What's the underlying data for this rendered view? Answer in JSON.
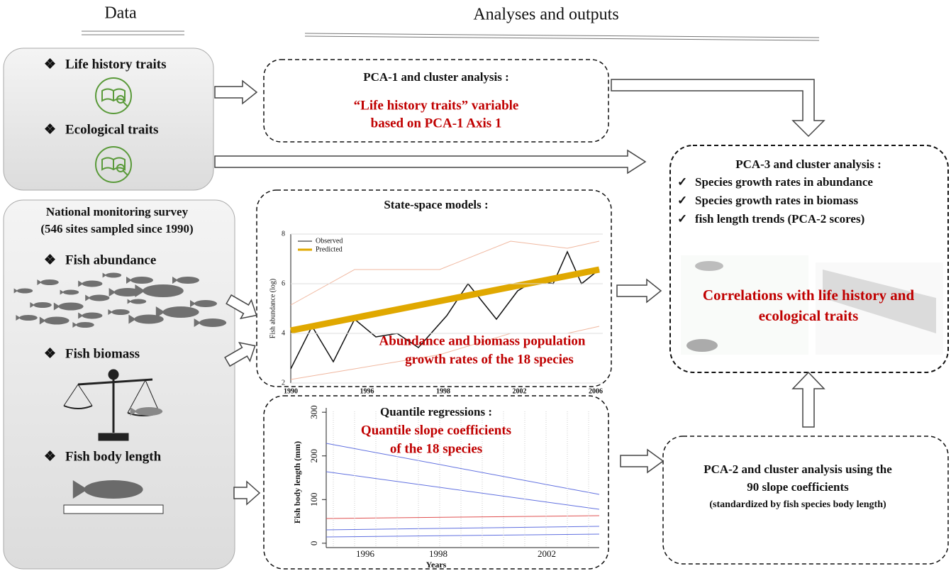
{
  "headers": {
    "data": "Data",
    "analyses": "Analyses and outputs"
  },
  "bullets": {
    "diamond": "❖",
    "check": "✓"
  },
  "inputs": {
    "traits": [
      "Life history traits",
      "Ecological traits"
    ],
    "survey": {
      "title": "National monitoring survey",
      "subtitle": "(546 sites sampled since 1990)",
      "items": [
        "Fish abundance",
        "Fish biomass",
        "Fish body length"
      ]
    }
  },
  "boxes": {
    "pca1": {
      "title": "PCA-1 and cluster analysis :",
      "lines": [
        "“Life history traits” variable",
        "based on PCA-1 Axis 1"
      ]
    },
    "state_space": {
      "title": "State-space models :",
      "legend": [
        "Observed",
        "Predicted"
      ],
      "y_label": "Fish abundance (log)",
      "ylim": [
        2,
        8
      ],
      "yticks": [
        2,
        4,
        6,
        8
      ],
      "xticks": [
        "1990",
        "1996",
        "1998",
        "2002",
        "2006"
      ],
      "lines": [
        "Abundance and biomass population",
        "growth rates of the 18 species"
      ]
    },
    "quantile": {
      "title": "Quantile regressions :",
      "y_label": "Fish body length (mm)",
      "x_label": "Years",
      "ylim": [
        -10,
        310
      ],
      "yticks": [
        0,
        100,
        200,
        300
      ],
      "xticks": [
        "1996",
        "1998",
        "2002"
      ],
      "lines": [
        "Quantile slope coefficients",
        "of the 18 species"
      ]
    },
    "pca3": {
      "title": "PCA-3 and cluster analysis :",
      "items": [
        "Species growth rates in abundance",
        "Species growth rates in biomass",
        "fish length trends (PCA-2 scores)"
      ],
      "lines": [
        "Correlations with life history and",
        "ecological traits"
      ]
    },
    "pca2": {
      "lines": [
        "PCA-2 and cluster analysis using the",
        "90 slope coefficients"
      ],
      "note": "(standardized by fish species body length)"
    }
  }
}
